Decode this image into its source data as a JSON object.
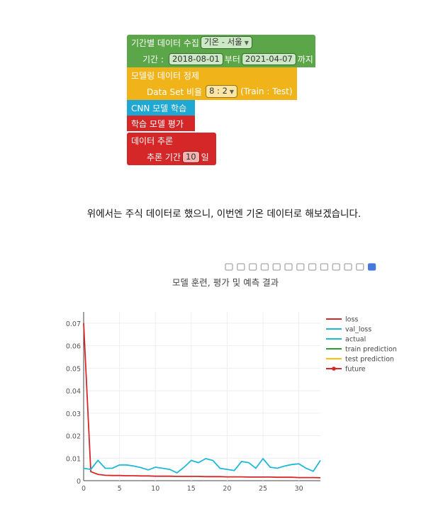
{
  "blocks": {
    "collect": {
      "label": "기간별 데이터 수집",
      "dropdown": "기온 - 서울"
    },
    "period": {
      "label": "기간 :",
      "start": "2018-08-01",
      "from": "부터",
      "end": "2021-04-07",
      "until": "까지"
    },
    "refine": {
      "label": "모델링 데이터 정제"
    },
    "ratio": {
      "label": "Data Set 비율",
      "dropdown": "8 : 2",
      "note": "(Train : Test)"
    },
    "cnn": {
      "label": "CNN 모델 학습"
    },
    "evaluate": {
      "label": "학습 모델 평가"
    },
    "infer": {
      "label": "데이터 추론"
    },
    "infer_period": {
      "label": "추론 기간",
      "value": "10",
      "unit": "일"
    },
    "colors": {
      "green": "#5aa648",
      "yellow": "#f0b41a",
      "cyan": "#1fa8d4",
      "red": "#d62728",
      "pill_green": "#cde8c5",
      "pill_yellow": "#fbe6a6",
      "pill_red": "#f3b3b3"
    }
  },
  "caption": "위에서는 주식 데이터로 했으니, 이번엔 기온 데이터로 해보겠습니다.",
  "modebar": [
    "camera-icon",
    "zoom-icon",
    "pan-icon",
    "box-select-icon",
    "lasso-icon",
    "zoom-in-icon",
    "zoom-out-icon",
    "autoscale-icon",
    "reset-axes-icon",
    "spike-lines-icon",
    "hover-closest-icon",
    "hover-compare-icon",
    "plotly-logo-icon"
  ],
  "chart_data": {
    "type": "line",
    "title": "모델 훈련, 평가 및 예측 결과",
    "xlim": [
      0,
      33
    ],
    "ylim": [
      0,
      0.075
    ],
    "x_ticks": [
      0,
      5,
      10,
      15,
      20,
      25,
      30
    ],
    "y_ticks": [
      0,
      0.01,
      0.02,
      0.03,
      0.04,
      0.05,
      0.06,
      0.07
    ],
    "grid": true,
    "legend_position": "right",
    "series": [
      {
        "name": "loss",
        "color": "#d62728",
        "x": [
          0,
          1,
          2,
          3,
          4,
          5,
          6,
          7,
          8,
          9,
          10,
          11,
          12,
          13,
          14,
          15,
          16,
          17,
          18,
          19,
          20,
          21,
          22,
          23,
          24,
          25,
          26,
          27,
          28,
          29,
          30,
          31,
          32,
          33
        ],
        "y": [
          0.07,
          0.004,
          0.0028,
          0.0024,
          0.0023,
          0.0023,
          0.0022,
          0.0022,
          0.0021,
          0.0021,
          0.002,
          0.002,
          0.002,
          0.0019,
          0.0019,
          0.0019,
          0.0019,
          0.0018,
          0.0018,
          0.0018,
          0.0017,
          0.0017,
          0.0017,
          0.0016,
          0.0016,
          0.0016,
          0.0016,
          0.0015,
          0.0015,
          0.0015,
          0.0014,
          0.0014,
          0.0014,
          0.0013
        ]
      },
      {
        "name": "val_loss",
        "color": "#1fb8d9",
        "x": [
          0,
          1,
          2,
          3,
          4,
          5,
          6,
          7,
          8,
          9,
          10,
          11,
          12,
          13,
          14,
          15,
          16,
          17,
          18,
          19,
          20,
          21,
          22,
          23,
          24,
          25,
          26,
          27,
          28,
          29,
          30,
          31,
          32,
          33
        ],
        "y": [
          0.0055,
          0.005,
          0.009,
          0.0055,
          0.0055,
          0.007,
          0.007,
          0.0065,
          0.0058,
          0.0048,
          0.006,
          0.0055,
          0.005,
          0.0035,
          0.006,
          0.009,
          0.008,
          0.0098,
          0.009,
          0.0055,
          0.005,
          0.0045,
          0.0085,
          0.008,
          0.0055,
          0.0098,
          0.006,
          0.0055,
          0.0065,
          0.0072,
          0.0075,
          0.0055,
          0.0042,
          0.009
        ]
      },
      {
        "name": "actual",
        "color": "#17becf",
        "x": [],
        "y": []
      },
      {
        "name": "train prediction",
        "color": "#2ca02c",
        "x": [],
        "y": []
      },
      {
        "name": "test prediction",
        "color": "#ffbf00",
        "x": [],
        "y": []
      },
      {
        "name": "future",
        "color": "#d62728",
        "x": [],
        "y": []
      }
    ]
  }
}
